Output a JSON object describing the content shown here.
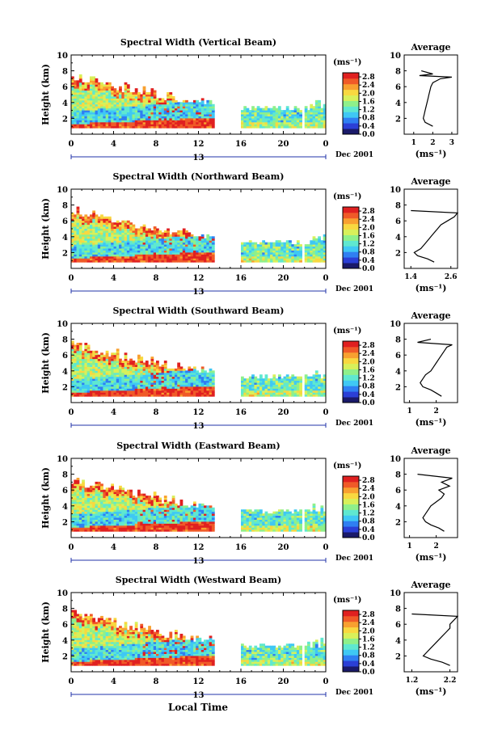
{
  "figure": {
    "xlabel": "Local Time",
    "date_label": "Dec 2001",
    "day_label": "13",
    "colorbar_unit": "(ms⁻¹)",
    "average_title": "Average",
    "average_unit": "(ms⁻¹)",
    "colors": [
      "#1a1a6a",
      "#2b3fd6",
      "#2f7ff2",
      "#3fc8f4",
      "#5fe8d0",
      "#8ff08a",
      "#d8f05a",
      "#f8d840",
      "#f8a030",
      "#f05a28",
      "#e02020"
    ]
  },
  "chart_data": [
    {
      "type": "heatmap",
      "title": "Spectral Width (Vertical Beam)",
      "ylabel": "Height (km)",
      "xlim": [
        0,
        24
      ],
      "ylim": [
        0,
        10
      ],
      "xticks": [
        "0",
        "4",
        "8",
        "12",
        "16",
        "20",
        "0"
      ],
      "yticks": [
        "2",
        "4",
        "6",
        "8",
        "10"
      ],
      "colorbar_ticks": [
        "0.0",
        "0.4",
        "0.8",
        "1.2",
        "1.6",
        "2.0",
        "2.4",
        "2.8"
      ],
      "colorbar_range": [
        0,
        3.0
      ],
      "profile": {
        "title": "Average",
        "xticks": [
          "1",
          "2",
          "3"
        ],
        "xlim": [
          0.5,
          3.3
        ],
        "yticks": [
          "2",
          "4",
          "6",
          "8",
          "10"
        ],
        "ylim": [
          0,
          10
        ],
        "height": [
          1.0,
          1.5,
          2.0,
          2.5,
          3.0,
          3.5,
          4.0,
          4.5,
          5.0,
          5.5,
          6.0,
          6.5,
          7.0,
          7.2,
          7.4,
          7.6,
          8.0
        ],
        "value": [
          2.0,
          1.6,
          1.5,
          1.55,
          1.6,
          1.65,
          1.7,
          1.75,
          1.8,
          1.85,
          1.9,
          2.0,
          2.4,
          3.0,
          1.3,
          2.0,
          1.4
        ]
      }
    },
    {
      "type": "heatmap",
      "title": "Spectral Width (Northward Beam)",
      "ylabel": "Height (km)",
      "xlim": [
        0,
        24
      ],
      "ylim": [
        0,
        10
      ],
      "xticks": [
        "0",
        "4",
        "8",
        "12",
        "16",
        "20",
        "0"
      ],
      "yticks": [
        "2",
        "4",
        "6",
        "8",
        "10"
      ],
      "colorbar_ticks": [
        "0.0",
        "0.4",
        "0.8",
        "1.2",
        "1.6",
        "2.0",
        "2.4",
        "2.8"
      ],
      "colorbar_range": [
        0,
        3.0
      ],
      "profile": {
        "title": "Average",
        "xticks": [
          "1.4",
          "2.6"
        ],
        "xlim": [
          1.2,
          2.8
        ],
        "yticks": [
          "2",
          "4",
          "6",
          "8",
          "10"
        ],
        "ylim": [
          0,
          10
        ],
        "height": [
          0.8,
          1.2,
          1.6,
          2.0,
          2.5,
          3.0,
          3.5,
          4.0,
          4.5,
          5.0,
          5.5,
          6.0,
          6.5,
          7.0,
          7.3
        ],
        "value": [
          2.1,
          1.9,
          1.6,
          1.5,
          1.7,
          1.8,
          1.9,
          2.0,
          2.1,
          2.2,
          2.3,
          2.5,
          2.7,
          2.8,
          1.4
        ]
      }
    },
    {
      "type": "heatmap",
      "title": "Spectral Width (Southward Beam)",
      "ylabel": "Height (km)",
      "xlim": [
        0,
        24
      ],
      "ylim": [
        0,
        10
      ],
      "xticks": [
        "0",
        "4",
        "8",
        "12",
        "16",
        "20",
        "0"
      ],
      "yticks": [
        "2",
        "4",
        "6",
        "8",
        "10"
      ],
      "colorbar_ticks": [
        "0.0",
        "0.4",
        "0.8",
        "1.2",
        "1.6",
        "2.0",
        "2.4",
        "2.8"
      ],
      "colorbar_range": [
        0,
        3.0
      ],
      "profile": {
        "title": "Average",
        "xticks": [
          "1",
          "2"
        ],
        "xlim": [
          0.8,
          2.8
        ],
        "yticks": [
          "2",
          "4",
          "6",
          "8",
          "10"
        ],
        "ylim": [
          0,
          10
        ],
        "height": [
          0.8,
          1.2,
          1.6,
          2.0,
          2.5,
          3.0,
          3.5,
          4.0,
          4.5,
          5.0,
          5.5,
          6.0,
          6.5,
          7.0,
          7.3,
          7.6,
          8.0
        ],
        "value": [
          2.2,
          2.0,
          1.8,
          1.5,
          1.4,
          1.5,
          1.6,
          1.8,
          1.9,
          2.0,
          2.1,
          2.2,
          2.3,
          2.4,
          2.6,
          1.3,
          1.8
        ]
      }
    },
    {
      "type": "heatmap",
      "title": "Spectral Width (Eastward Beam)",
      "ylabel": "Height (km)",
      "xlim": [
        0,
        24
      ],
      "ylim": [
        0,
        10
      ],
      "xticks": [
        "0",
        "4",
        "8",
        "12",
        "16",
        "20",
        "0"
      ],
      "yticks": [
        "2",
        "4",
        "6",
        "8",
        "10"
      ],
      "colorbar_ticks": [
        "0.0",
        "0.4",
        "0.8",
        "1.2",
        "1.6",
        "2.0",
        "2.4",
        "2.8"
      ],
      "colorbar_range": [
        0,
        3.0
      ],
      "profile": {
        "title": "Average",
        "xticks": [
          "1",
          "2"
        ],
        "xlim": [
          0.8,
          2.8
        ],
        "yticks": [
          "2",
          "4",
          "6",
          "8",
          "10"
        ],
        "ylim": [
          0,
          10
        ],
        "height": [
          0.8,
          1.2,
          1.6,
          2.0,
          2.5,
          3.0,
          3.5,
          4.0,
          4.5,
          5.0,
          5.5,
          6.0,
          6.5,
          7.0,
          7.5,
          8.0
        ],
        "value": [
          2.3,
          2.1,
          1.8,
          1.6,
          1.5,
          1.6,
          1.7,
          1.8,
          2.0,
          2.2,
          2.3,
          2.1,
          2.5,
          2.2,
          2.6,
          1.3
        ]
      }
    },
    {
      "type": "heatmap",
      "title": "Spectral Width (Westward Beam)",
      "ylabel": "Height (km)",
      "xlim": [
        0,
        24
      ],
      "ylim": [
        0,
        10
      ],
      "xticks": [
        "0",
        "4",
        "8",
        "12",
        "16",
        "20",
        "0"
      ],
      "yticks": [
        "2",
        "4",
        "6",
        "8",
        "10"
      ],
      "colorbar_ticks": [
        "0.0",
        "0.4",
        "0.8",
        "1.2",
        "1.6",
        "2.0",
        "2.4",
        "2.8"
      ],
      "colorbar_range": [
        0,
        3.0
      ],
      "profile": {
        "title": "Average",
        "xticks": [
          "1.2",
          "2.2"
        ],
        "xlim": [
          1.0,
          2.4
        ],
        "yticks": [
          "2",
          "4",
          "6",
          "8",
          "10"
        ],
        "ylim": [
          0,
          10
        ],
        "height": [
          0.8,
          1.2,
          1.6,
          2.0,
          2.5,
          3.0,
          3.5,
          4.0,
          4.5,
          5.0,
          5.5,
          6.0,
          6.5,
          7.0,
          7.3
        ],
        "value": [
          2.2,
          2.0,
          1.7,
          1.5,
          1.6,
          1.7,
          1.8,
          1.9,
          2.0,
          2.1,
          2.2,
          2.2,
          2.3,
          2.4,
          1.2
        ]
      }
    }
  ]
}
